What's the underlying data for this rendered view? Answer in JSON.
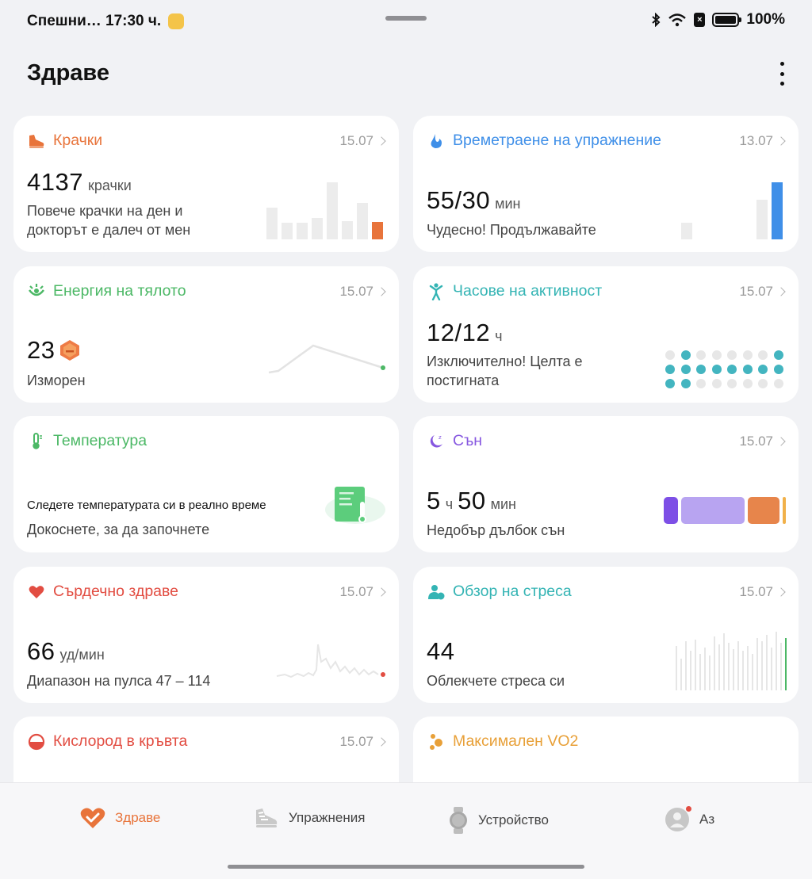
{
  "status_bar": {
    "carrier": "Спешни…",
    "time": "17:30 ч.",
    "battery": "100%"
  },
  "header": {
    "title": "Здраве"
  },
  "colors": {
    "orange": "#e8743b",
    "blue": "#3f8fe8",
    "green": "#4cb866",
    "teal": "#34b4b4",
    "purple": "#8657e0",
    "red": "#e24d42",
    "amber": "#e8a038"
  },
  "cards": {
    "steps": {
      "title": "Крачки",
      "date": "15.07",
      "value": "4137",
      "unit": "крачки",
      "desc_line1": "Повече крачки на ден и",
      "desc_line2": "докторът е далеч от мен",
      "icon": "shoe-icon"
    },
    "exercise": {
      "title": "Времетраене на упражнение",
      "date": "13.07",
      "value": "55/30",
      "unit": "мин",
      "desc": "Чудесно! Продължавайте",
      "icon": "flame-icon"
    },
    "energy": {
      "title": "Енергия на тялото",
      "date": "15.07",
      "value": "23",
      "desc": "Изморен",
      "icon": "energy-icon"
    },
    "activity": {
      "title": "Часове на активност",
      "date": "15.07",
      "value": "12/12",
      "unit": "ч",
      "desc_line1": "Изключително! Целта е",
      "desc_line2": "постигната",
      "icon": "person-icon"
    },
    "temperature": {
      "title": "Температура",
      "prompt": "Следете температурата си в реално време",
      "desc": "Докоснете, за да започнете",
      "icon": "thermometer-icon"
    },
    "sleep": {
      "title": "Сън",
      "date": "15.07",
      "hours": "5",
      "hours_unit": "ч",
      "minutes": "50",
      "minutes_unit": "мин",
      "desc": "Недобър дълбок сън",
      "icon": "moon-icon"
    },
    "heart": {
      "title": "Сърдечно здраве",
      "date": "15.07",
      "value": "66",
      "unit": "уд/мин",
      "desc": "Диапазон на пулса 47 – 114",
      "icon": "heart-icon"
    },
    "stress": {
      "title": "Обзор на стреса",
      "date": "15.07",
      "value": "44",
      "desc": "Облекчете стреса си",
      "icon": "stress-icon"
    },
    "oxygen": {
      "title": "Кислород в кръвта",
      "date": "15.07",
      "icon": "oxygen-icon"
    },
    "vo2": {
      "title": "Максимален VO2",
      "icon": "vo2-icon"
    }
  },
  "nav": {
    "items": [
      {
        "label": "Здраве",
        "icon": "heart-check-icon"
      },
      {
        "label": "Упражнения",
        "icon": "shoe-icon"
      },
      {
        "label": "Устройство",
        "icon": "watch-icon"
      },
      {
        "label": "Аз",
        "icon": "avatar-icon"
      }
    ]
  }
}
